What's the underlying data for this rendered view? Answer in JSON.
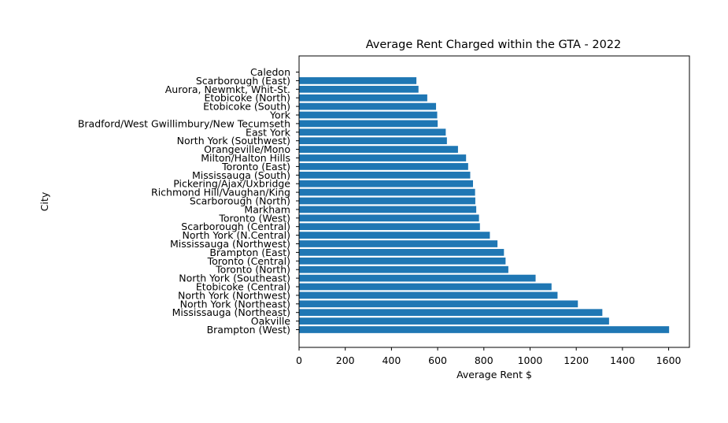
{
  "chart_data": {
    "type": "bar",
    "orientation": "horizontal",
    "title": "Average Rent Charged within the GTA - 2022",
    "xlabel": "Average Rent $",
    "ylabel": "City",
    "xlim": [
      0,
      1690
    ],
    "xticks": [
      0,
      200,
      400,
      600,
      800,
      1000,
      1200,
      1400,
      1600
    ],
    "grid": false,
    "bar_color": "#1f77b4",
    "categories": [
      "Caledon",
      "Scarborough (East)",
      "Aurora, Newmkt, Whit-St.",
      "Etobicoke (North)",
      "Etobicoke (South)",
      "York",
      "Bradford/West Gwillimbury/New Tecumseth",
      "East York",
      "North York (Southwest)",
      "Orangeville/Mono",
      "Milton/Halton Hills",
      "Toronto (East)",
      "Mississauga (South)",
      "Pickering/Ajax/Uxbridge",
      "Richmond Hill/Vaughan/King",
      "Scarborough (North)",
      "Markham",
      "Toronto (West)",
      "Scarborough (Central)",
      "North York (N.Central)",
      "Mississauga (Northwest)",
      "Brampton (East)",
      "Toronto (Central)",
      "Toronto (North)",
      "North York (Southeast)",
      "Etobicoke (Central)",
      "North York (Northwest)",
      "North York (Northeast)",
      "Mississauga (Northeast)",
      "Oakville",
      "Brampton (West)"
    ],
    "values": [
      0,
      508,
      517,
      555,
      593,
      598,
      600,
      635,
      640,
      688,
      723,
      732,
      741,
      753,
      762,
      763,
      767,
      779,
      783,
      826,
      859,
      887,
      894,
      906,
      1024,
      1093,
      1119,
      1207,
      1313,
      1342,
      1602
    ]
  }
}
